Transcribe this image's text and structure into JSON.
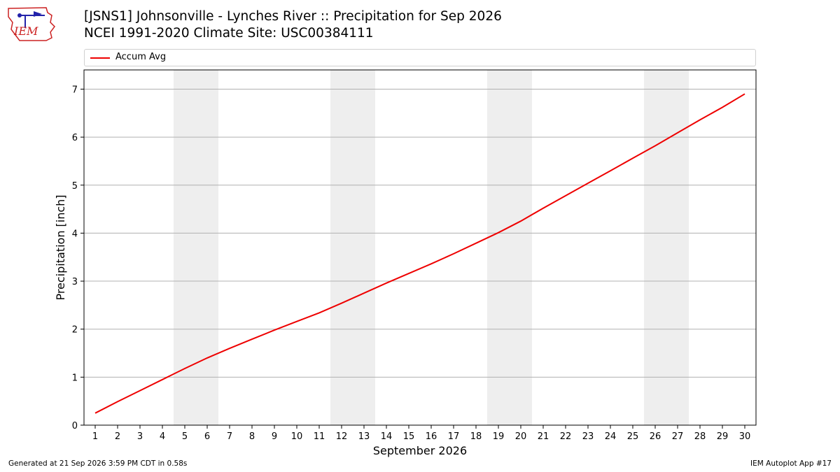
{
  "header": {
    "title_line1": "[JSNS1] Johnsonville - Lynches River :: Precipitation for Sep 2026",
    "title_line2": "NCEI 1991-2020 Climate Site: USC00384111",
    "logo_text": "IEM"
  },
  "footer": {
    "generated": "Generated at 21 Sep 2026 3:59 PM CDT in 0.58s",
    "app": "IEM Autoplot App #17"
  },
  "colors": {
    "line": "#ee0000",
    "weekend_band": "#eeeeee",
    "grid": "#b0b0b0"
  },
  "chart_data": {
    "type": "line",
    "xlabel": "September 2026",
    "ylabel": "Precipitation [inch]",
    "xlim": [
      0.5,
      30.5
    ],
    "ylim": [
      0,
      7.4
    ],
    "x_ticks": [
      1,
      2,
      3,
      4,
      5,
      6,
      7,
      8,
      9,
      10,
      11,
      12,
      13,
      14,
      15,
      16,
      17,
      18,
      19,
      20,
      21,
      22,
      23,
      24,
      25,
      26,
      27,
      28,
      29,
      30
    ],
    "y_ticks": [
      0,
      1,
      2,
      3,
      4,
      5,
      6,
      7
    ],
    "grid": "horizontal",
    "legend_position": "top",
    "shaded_weekends": [
      [
        5,
        6
      ],
      [
        12,
        13
      ],
      [
        19,
        20
      ],
      [
        26,
        27
      ]
    ],
    "series": [
      {
        "name": "Accum Avg",
        "x": [
          1,
          2,
          3,
          4,
          5,
          6,
          7,
          8,
          9,
          10,
          11,
          12,
          13,
          14,
          15,
          16,
          17,
          18,
          19,
          20,
          21,
          22,
          23,
          24,
          25,
          26,
          27,
          28,
          29,
          30
        ],
        "values": [
          0.25,
          0.49,
          0.72,
          0.95,
          1.18,
          1.4,
          1.6,
          1.79,
          1.98,
          2.16,
          2.34,
          2.54,
          2.75,
          2.96,
          3.16,
          3.36,
          3.57,
          3.79,
          4.01,
          4.25,
          4.52,
          4.78,
          5.04,
          5.3,
          5.56,
          5.82,
          6.09,
          6.36,
          6.62,
          6.9
        ]
      }
    ]
  }
}
